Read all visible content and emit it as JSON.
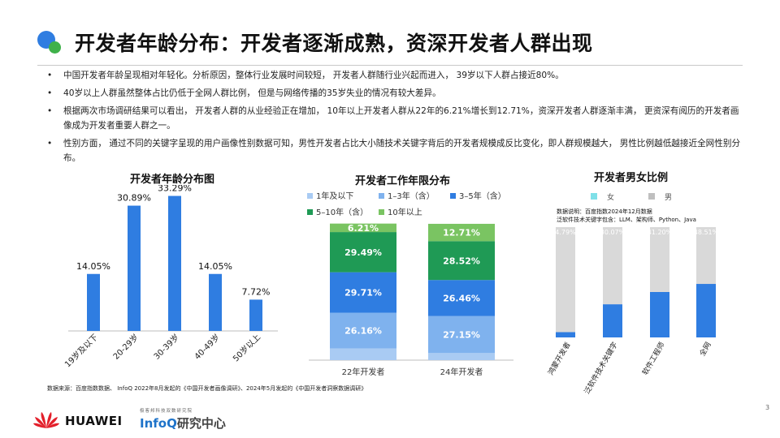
{
  "title": "开发者年龄分布：开发者逐渐成熟，资深开发者人群出现",
  "bullets": [
    {
      "mark": "•",
      "text": "中国开发者年龄呈现相对年轻化。分析原因，整体行业发展时间较短， 开发者人群随行业兴起而进入， 39岁以下人群占接近80%。"
    },
    {
      "mark": "•",
      "text": "40岁以上人群虽然整体占比仍低于全网人群比例， 但是与网络传播的35岁失业的情况有较大差异。"
    },
    {
      "mark": "•",
      "text": "根据两次市场调研结果可以看出， 开发者人群的从业经验正在增加， 10年以上开发者人群从22年的6.21%增长到12.71%，资深开发者人群逐渐丰满， 更资深有阅历的开发者画像成为开发者重要人群之一。"
    },
    {
      "mark": "•",
      "text": "性别方面， 通过不同的关键字呈现的用户画像性别数据可知，男性开发者占比大小随技术关键字背后的开发者规模成反比变化，即人群规模越大， 男性比例越低越接近全网性别分布。"
    }
  ],
  "chart_data": [
    {
      "type": "bar",
      "title": "开发者年龄分布图",
      "categories": [
        "19岁及以下",
        "20-29岁",
        "30-39岁",
        "40-49岁",
        "50岁以上"
      ],
      "values": [
        14.05,
        30.89,
        33.29,
        14.05,
        7.72
      ],
      "labels": [
        "14.05%",
        "30.89%",
        "33.29%",
        "14.05%",
        "7.72%"
      ],
      "ylim": [
        0,
        36
      ],
      "color": "#2f7de1",
      "xlabel": "",
      "ylabel": ""
    },
    {
      "type": "bar",
      "stacked": true,
      "title": "开发者工作年限分布",
      "categories": [
        "22年开发者",
        "24年开发者"
      ],
      "series": [
        {
          "name": "1年及以下",
          "color": "#a9cbf3",
          "values": [
            8.64,
            5.19
          ],
          "labels": [
            "",
            ""
          ]
        },
        {
          "name": "1–3年（含）",
          "color": "#7fb2ee",
          "values": [
            26.16,
            27.15
          ],
          "labels": [
            "26.16%",
            "27.15%"
          ]
        },
        {
          "name": "3–5年（含）",
          "color": "#2f7de1",
          "values": [
            29.71,
            26.46
          ],
          "labels": [
            "29.71%",
            "26.46%"
          ]
        },
        {
          "name": "5–10年（含）",
          "color": "#1f9a55",
          "values": [
            29.49,
            28.52
          ],
          "labels": [
            "29.49%",
            "28.52%"
          ]
        },
        {
          "name": "10年以上",
          "color": "#7ac462",
          "values": [
            6.21,
            12.71
          ],
          "labels": [
            "6.21%",
            "12.71%"
          ]
        }
      ],
      "legend": "top"
    },
    {
      "type": "bar",
      "stacked": true,
      "title": "开发者男女比例",
      "note_lines": [
        "数据说明：百度指数2024年12月数据",
        "泛软件技术关键字包含：LLM、架构师、Python、Java"
      ],
      "categories": [
        "鸿蒙开发者",
        "泛软件技术关键字",
        "软件工程师",
        "全网"
      ],
      "series": [
        {
          "name": "女",
          "color": "#2f7de1",
          "values": [
            4.79,
            30.07,
            41.2,
            48.51
          ],
          "labels": [
            "4.79%",
            "30.07%",
            "41.20%",
            "48.51%"
          ]
        },
        {
          "name": "男",
          "color": "#d9d9d9",
          "values": [
            95.21,
            69.93,
            58.8,
            51.49
          ],
          "labels": [
            "",
            "",
            "",
            ""
          ]
        }
      ],
      "legend_colors": {
        "女": "#7fe0e8",
        "男": "#bfbfbf"
      },
      "ylim": [
        0,
        100
      ],
      "legend": "top"
    }
  ],
  "source": "数据来源：百度指数数据、 InfoQ 2022年8月发起的《中国开发者画像调研》、2024年5月发起的《中国开发者洞察数据调研》",
  "footer": {
    "brand": "HUAWEI",
    "infoq_tag": "极客邦科技双数研究院",
    "infoq_name_a": "InfoQ",
    "infoq_name_b": "研究中心",
    "page_number": "3"
  }
}
